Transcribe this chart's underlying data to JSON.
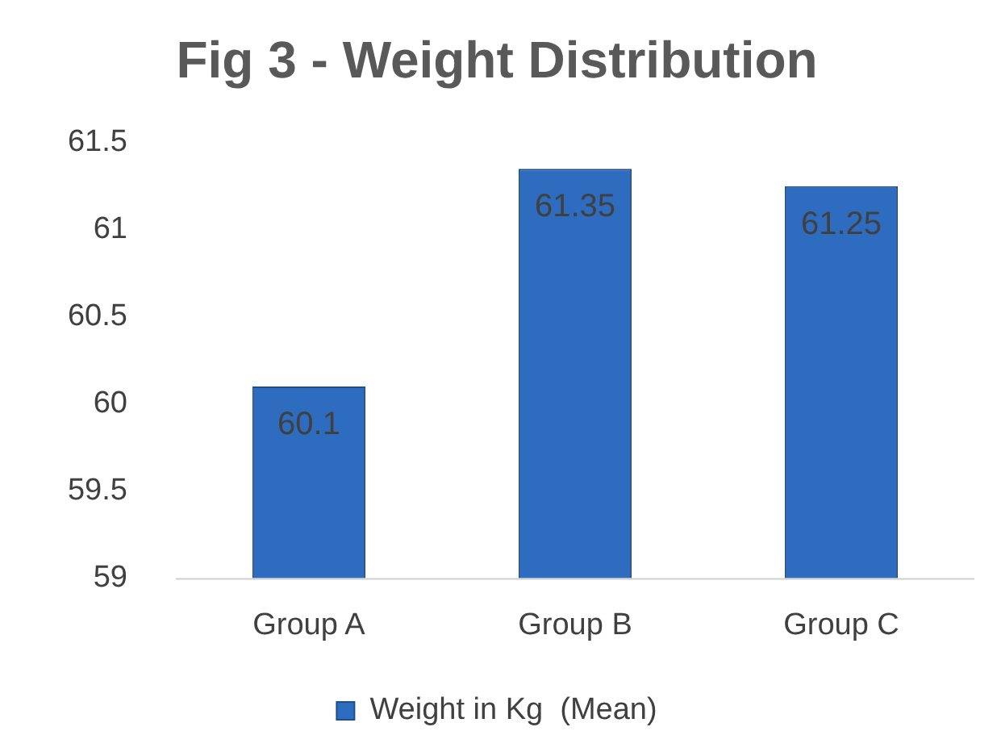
{
  "chart_data": {
    "type": "bar",
    "title": "Fig 3 - Weight Distribution",
    "categories": [
      "Group A",
      "Group B",
      "Group C"
    ],
    "series": [
      {
        "name": "Weight in Kg  (Mean)",
        "color": "#2e6cc0",
        "values": [
          60.1,
          61.35,
          61.25
        ]
      }
    ],
    "ylim": [
      59,
      61.5
    ],
    "yticks": [
      59,
      59.5,
      60,
      60.5,
      61,
      61.5
    ],
    "grid": false,
    "legend": "bottom",
    "data_labels": true
  }
}
